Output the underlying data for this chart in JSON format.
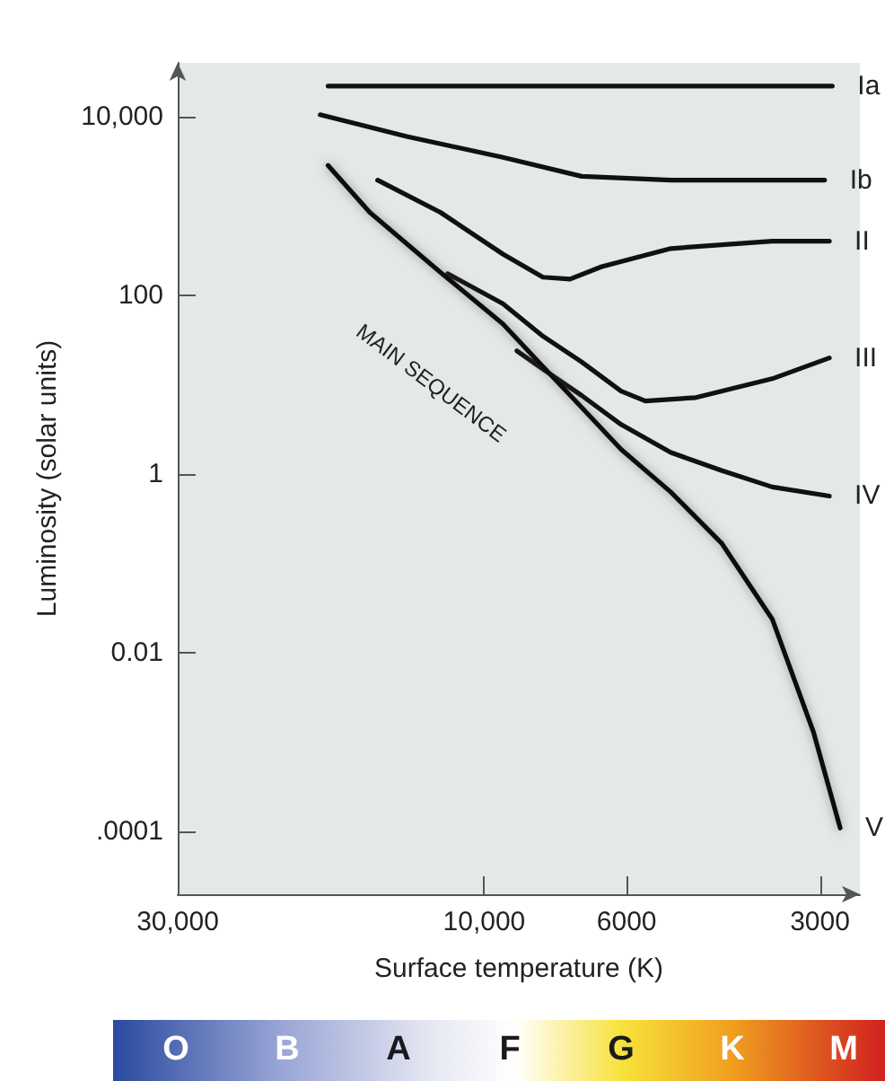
{
  "chart_data": {
    "type": "line",
    "xlabel": "Surface temperature (K)",
    "ylabel": "Luminosity (solar units)",
    "log": "xy",
    "grid": false,
    "legend": false,
    "marker": "none",
    "line_style": "solid",
    "xlim": [
      30000,
      2600
    ],
    "ylim": [
      2e-05,
      40000
    ],
    "xticks": [
      {
        "value": 30000,
        "label": "30,000"
      },
      {
        "value": 10000,
        "label": "10,000"
      },
      6000,
      3000
    ],
    "yticks": [
      {
        "value": 10000,
        "label": "10,000"
      },
      100,
      1,
      0.01,
      {
        "value": 0.0001,
        "label": ".0001"
      }
    ],
    "series": [
      {
        "name": "Ia",
        "color": "#111111",
        "x": [
          17500,
          8000,
          2870
        ],
        "values": [
          22000,
          22000,
          22000
        ]
      },
      {
        "name": "Ib",
        "color": "#111111",
        "x": [
          18000,
          13200,
          9350,
          7050,
          5120,
          2950
        ],
        "values": [
          10500,
          6000,
          3500,
          2150,
          1950,
          1950
        ]
      },
      {
        "name": "II",
        "color": "#111111",
        "x": [
          14650,
          11700,
          9350,
          8100,
          7350,
          6560,
          5120,
          3560,
          2900
        ],
        "values": [
          1950,
          850,
          290,
          160,
          152,
          210,
          335,
          405,
          405
        ]
      },
      {
        "name": "III",
        "color": "#111111",
        "x": [
          11400,
          9350,
          8100,
          7050,
          6120,
          5610,
          4680,
          3560,
          2900
        ],
        "values": [
          175,
          81,
          35,
          18,
          8.5,
          6.6,
          7.2,
          11.7,
          20
        ]
      },
      {
        "name": "IV",
        "color": "#111111",
        "x": [
          8890,
          8100,
          7050,
          6120,
          5120,
          4270,
          3560,
          2900
        ],
        "values": [
          24,
          15,
          7.6,
          3.6,
          1.75,
          1.1,
          0.72,
          0.57
        ]
      },
      {
        "name": "V",
        "color": "#111111",
        "x": [
          17500,
          15070,
          11700,
          9350,
          8100,
          7050,
          6120,
          5120,
          4270,
          3560,
          3070,
          2790
        ],
        "values": [
          2850,
          850,
          182,
          48,
          16,
          5.6,
          1.9,
          0.63,
          0.17,
          0.024,
          0.0013,
          0.00011
        ]
      }
    ],
    "annotations": [
      "MAIN SEQUENCE",
      "O",
      "B",
      "A",
      "F",
      "G",
      "K",
      "M"
    ]
  }
}
